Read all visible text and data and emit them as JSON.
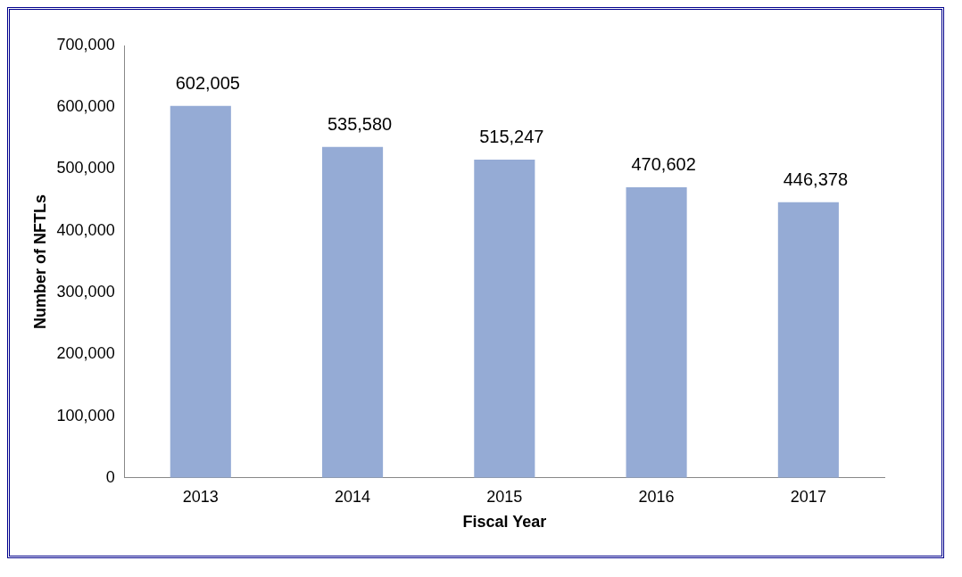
{
  "chart_data": {
    "type": "bar",
    "xlabel": "Fiscal Year",
    "ylabel": "Number of NFTLs",
    "categories": [
      "2013",
      "2014",
      "2015",
      "2016",
      "2017"
    ],
    "values": [
      602005,
      535580,
      515247,
      470602,
      446378
    ],
    "value_labels": [
      "602,005",
      "535,580",
      "515,247",
      "470,602",
      "446,378"
    ],
    "color": "#95abd5",
    "ylim": [
      0,
      700000
    ],
    "yticks": [
      {
        "value": 0,
        "label": "0"
      },
      {
        "value": 100000,
        "label": "100,000"
      },
      {
        "value": 200000,
        "label": "200,000"
      },
      {
        "value": 300000,
        "label": "300,000"
      },
      {
        "value": 400000,
        "label": "400,000"
      },
      {
        "value": 500000,
        "label": "500,000"
      },
      {
        "value": 600000,
        "label": "600,000"
      },
      {
        "value": 700000,
        "label": "700,000"
      }
    ]
  }
}
